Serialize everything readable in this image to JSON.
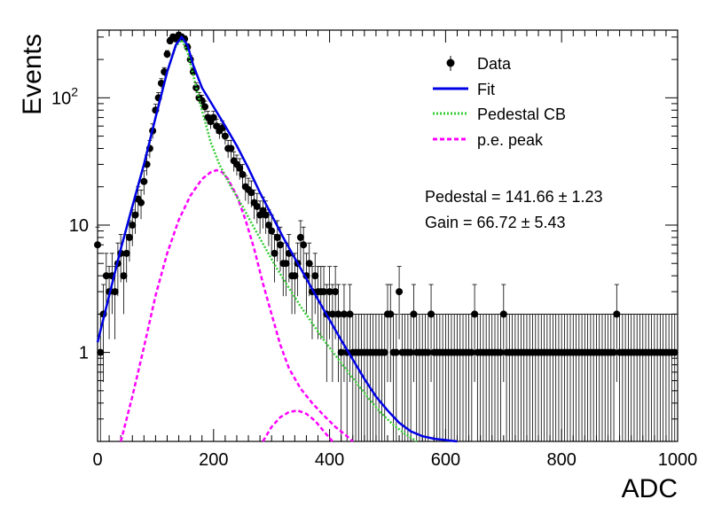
{
  "chart_data": {
    "type": "scatter",
    "title": "",
    "xlabel": "ADC",
    "ylabel": "Events",
    "xlim": [
      0,
      1000
    ],
    "ylim": [
      0.2,
      340
    ],
    "y_scale": "log",
    "x_ticks": [
      "0",
      "200",
      "400",
      "600",
      "800",
      "1000"
    ],
    "y_ticks": [
      {
        "value": 1,
        "label": "1"
      },
      {
        "value": 10,
        "label": "10"
      },
      {
        "value": 100,
        "label": "10^2"
      }
    ],
    "legend": {
      "position": "top-right",
      "entries": [
        {
          "label": "Data",
          "style": "marker",
          "color": "#000000"
        },
        {
          "label": "Fit",
          "style": "solid",
          "color": "#0000e6"
        },
        {
          "label": "Pedestal CB",
          "style": "dotted",
          "color": "#33cc33"
        },
        {
          "label": "p.e. peak",
          "style": "dashed",
          "color": "#ff00ff"
        }
      ]
    },
    "annotations": {
      "pedestal": "Pedestal = 141.66 ± 1.23",
      "gain": "Gain = 66.72 ± 5.43"
    },
    "series": [
      {
        "name": "Data",
        "points": [
          [
            0,
            7
          ],
          [
            5,
            1
          ],
          [
            10,
            2
          ],
          [
            15,
            4
          ],
          [
            20,
            3
          ],
          [
            25,
            4
          ],
          [
            30,
            3
          ],
          [
            35,
            5
          ],
          [
            40,
            6
          ],
          [
            45,
            4
          ],
          [
            50,
            6
          ],
          [
            55,
            8
          ],
          [
            60,
            10
          ],
          [
            65,
            12
          ],
          [
            70,
            16
          ],
          [
            75,
            15
          ],
          [
            80,
            22
          ],
          [
            85,
            30
          ],
          [
            90,
            40
          ],
          [
            95,
            55
          ],
          [
            100,
            80
          ],
          [
            105,
            100
          ],
          [
            110,
            130
          ],
          [
            115,
            160
          ],
          [
            120,
            220
          ],
          [
            125,
            280
          ],
          [
            130,
            300
          ],
          [
            135,
            290
          ],
          [
            140,
            310
          ],
          [
            145,
            300
          ],
          [
            150,
            290
          ],
          [
            155,
            250
          ],
          [
            160,
            200
          ],
          [
            165,
            160
          ],
          [
            170,
            120
          ],
          [
            175,
            100
          ],
          [
            180,
            95
          ],
          [
            185,
            85
          ],
          [
            190,
            70
          ],
          [
            195,
            65
          ],
          [
            200,
            70
          ],
          [
            205,
            60
          ],
          [
            210,
            55
          ],
          [
            215,
            58
          ],
          [
            220,
            50
          ],
          [
            225,
            40
          ],
          [
            230,
            40
          ],
          [
            235,
            32
          ],
          [
            240,
            30
          ],
          [
            245,
            28
          ],
          [
            250,
            25
          ],
          [
            255,
            20
          ],
          [
            260,
            19
          ],
          [
            265,
            18
          ],
          [
            270,
            15
          ],
          [
            275,
            14
          ],
          [
            280,
            12
          ],
          [
            285,
            13
          ],
          [
            290,
            12
          ],
          [
            295,
            10
          ],
          [
            300,
            9
          ],
          [
            305,
            6
          ],
          [
            310,
            8
          ],
          [
            315,
            7
          ],
          [
            320,
            5
          ],
          [
            325,
            5
          ],
          [
            330,
            6
          ],
          [
            335,
            4
          ],
          [
            340,
            4
          ],
          [
            345,
            5
          ],
          [
            350,
            8
          ],
          [
            355,
            7
          ],
          [
            360,
            4
          ],
          [
            365,
            5
          ],
          [
            370,
            3
          ],
          [
            375,
            4
          ],
          [
            380,
            3
          ],
          [
            385,
            3
          ],
          [
            390,
            3
          ],
          [
            395,
            2
          ],
          [
            400,
            3
          ],
          [
            405,
            2
          ],
          [
            410,
            3
          ],
          [
            415,
            2
          ],
          [
            420,
            1
          ],
          [
            425,
            2
          ],
          [
            430,
            1
          ],
          [
            435,
            2
          ],
          [
            440,
            1
          ],
          [
            445,
            1
          ],
          [
            450,
            1
          ],
          [
            455,
            1
          ],
          [
            460,
            1
          ],
          [
            465,
            1
          ],
          [
            470,
            1
          ],
          [
            475,
            1
          ],
          [
            480,
            1
          ],
          [
            485,
            1
          ],
          [
            490,
            1
          ],
          [
            495,
            1
          ],
          [
            500,
            2
          ],
          [
            505,
            2
          ],
          [
            510,
            1
          ],
          [
            515,
            1
          ],
          [
            520,
            3
          ],
          [
            525,
            1
          ],
          [
            530,
            1
          ],
          [
            535,
            1
          ],
          [
            540,
            1
          ],
          [
            545,
            2
          ],
          [
            550,
            1
          ],
          [
            555,
            1
          ],
          [
            560,
            1
          ],
          [
            565,
            1
          ],
          [
            570,
            1
          ],
          [
            575,
            2
          ],
          [
            580,
            1
          ],
          [
            585,
            1
          ],
          [
            590,
            1
          ],
          [
            595,
            1
          ],
          [
            600,
            1
          ],
          [
            605,
            1
          ],
          [
            610,
            1
          ],
          [
            615,
            1
          ],
          [
            620,
            1
          ],
          [
            625,
            1
          ],
          [
            630,
            1
          ],
          [
            635,
            1
          ],
          [
            640,
            1
          ],
          [
            645,
            1
          ],
          [
            650,
            2
          ],
          [
            655,
            1
          ],
          [
            660,
            1
          ],
          [
            665,
            1
          ],
          [
            670,
            1
          ],
          [
            675,
            1
          ],
          [
            680,
            1
          ],
          [
            685,
            1
          ],
          [
            690,
            1
          ],
          [
            695,
            1
          ],
          [
            700,
            2
          ],
          [
            705,
            1
          ],
          [
            710,
            1
          ],
          [
            715,
            1
          ],
          [
            720,
            1
          ],
          [
            725,
            1
          ],
          [
            730,
            1
          ],
          [
            735,
            1
          ],
          [
            740,
            1
          ],
          [
            745,
            1
          ],
          [
            750,
            1
          ],
          [
            755,
            1
          ],
          [
            760,
            1
          ],
          [
            765,
            1
          ],
          [
            770,
            1
          ],
          [
            775,
            1
          ],
          [
            780,
            1
          ],
          [
            785,
            1
          ],
          [
            790,
            1
          ],
          [
            795,
            1
          ],
          [
            800,
            1
          ],
          [
            805,
            1
          ],
          [
            810,
            1
          ],
          [
            815,
            1
          ],
          [
            820,
            1
          ],
          [
            825,
            1
          ],
          [
            830,
            1
          ],
          [
            835,
            1
          ],
          [
            840,
            1
          ],
          [
            845,
            1
          ],
          [
            850,
            1
          ],
          [
            855,
            1
          ],
          [
            860,
            1
          ],
          [
            865,
            1
          ],
          [
            870,
            1
          ],
          [
            875,
            1
          ],
          [
            880,
            1
          ],
          [
            885,
            1
          ],
          [
            890,
            1
          ],
          [
            895,
            2
          ],
          [
            900,
            1
          ],
          [
            905,
            1
          ],
          [
            910,
            1
          ],
          [
            915,
            1
          ],
          [
            920,
            1
          ],
          [
            925,
            1
          ],
          [
            930,
            1
          ],
          [
            935,
            1
          ],
          [
            940,
            1
          ],
          [
            945,
            1
          ],
          [
            950,
            1
          ],
          [
            955,
            1
          ],
          [
            960,
            1
          ],
          [
            965,
            1
          ],
          [
            970,
            1
          ],
          [
            975,
            1
          ],
          [
            980,
            1
          ],
          [
            985,
            1
          ],
          [
            990,
            1
          ],
          [
            995,
            1
          ]
        ]
      },
      {
        "name": "Fit",
        "points": [
          [
            0,
            1.2
          ],
          [
            20,
            2.8
          ],
          [
            40,
            6.5
          ],
          [
            60,
            14
          ],
          [
            80,
            30
          ],
          [
            100,
            70
          ],
          [
            120,
            160
          ],
          [
            135,
            260
          ],
          [
            145,
            300
          ],
          [
            155,
            260
          ],
          [
            165,
            180
          ],
          [
            180,
            120
          ],
          [
            200,
            85
          ],
          [
            220,
            60
          ],
          [
            240,
            42
          ],
          [
            260,
            28
          ],
          [
            280,
            18
          ],
          [
            300,
            12
          ],
          [
            320,
            8
          ],
          [
            340,
            5.5
          ],
          [
            360,
            3.8
          ],
          [
            380,
            2.6
          ],
          [
            400,
            1.8
          ],
          [
            420,
            1.25
          ],
          [
            440,
            0.88
          ],
          [
            460,
            0.62
          ],
          [
            480,
            0.45
          ],
          [
            500,
            0.35
          ],
          [
            520,
            0.28
          ],
          [
            540,
            0.24
          ],
          [
            560,
            0.22
          ],
          [
            580,
            0.21
          ],
          [
            600,
            0.205
          ],
          [
            620,
            0.2
          ]
        ]
      },
      {
        "name": "Pedestal CB",
        "points": [
          [
            0,
            1.2
          ],
          [
            20,
            2.8
          ],
          [
            40,
            6.5
          ],
          [
            60,
            14
          ],
          [
            80,
            30
          ],
          [
            100,
            70
          ],
          [
            120,
            160
          ],
          [
            135,
            255
          ],
          [
            145,
            285
          ],
          [
            155,
            230
          ],
          [
            165,
            150
          ],
          [
            180,
            80
          ],
          [
            195,
            45
          ],
          [
            210,
            30
          ],
          [
            230,
            20
          ],
          [
            250,
            14
          ],
          [
            270,
            9.5
          ],
          [
            290,
            6.5
          ],
          [
            310,
            4.5
          ],
          [
            330,
            3.2
          ],
          [
            350,
            2.3
          ],
          [
            370,
            1.7
          ],
          [
            390,
            1.25
          ],
          [
            410,
            0.95
          ],
          [
            430,
            0.72
          ],
          [
            450,
            0.55
          ],
          [
            470,
            0.42
          ],
          [
            490,
            0.33
          ],
          [
            510,
            0.27
          ],
          [
            530,
            0.23
          ],
          [
            550,
            0.2
          ]
        ]
      },
      {
        "name": "p.e. peak",
        "segments": [
          [
            [
              40,
              0.2
            ],
            [
              60,
              0.45
            ],
            [
              80,
              1.1
            ],
            [
              100,
              2.8
            ],
            [
              120,
              6
            ],
            [
              140,
              11
            ],
            [
              160,
              17
            ],
            [
              180,
              23
            ],
            [
              195,
              26
            ],
            [
              205,
              27
            ],
            [
              215,
              26
            ],
            [
              225,
              23
            ],
            [
              240,
              17
            ],
            [
              255,
              11
            ],
            [
              270,
              6.5
            ],
            [
              285,
              3.5
            ],
            [
              300,
              2
            ],
            [
              315,
              1.15
            ],
            [
              330,
              0.75
            ],
            [
              350,
              0.52
            ],
            [
              370,
              0.4
            ],
            [
              390,
              0.32
            ],
            [
              410,
              0.26
            ],
            [
              430,
              0.22
            ],
            [
              440,
              0.2
            ]
          ],
          [
            [
              285,
              0.2
            ],
            [
              300,
              0.26
            ],
            [
              315,
              0.31
            ],
            [
              330,
              0.34
            ],
            [
              345,
              0.35
            ],
            [
              360,
              0.33
            ],
            [
              375,
              0.29
            ],
            [
              390,
              0.24
            ],
            [
              405,
              0.2
            ]
          ]
        ]
      }
    ]
  }
}
